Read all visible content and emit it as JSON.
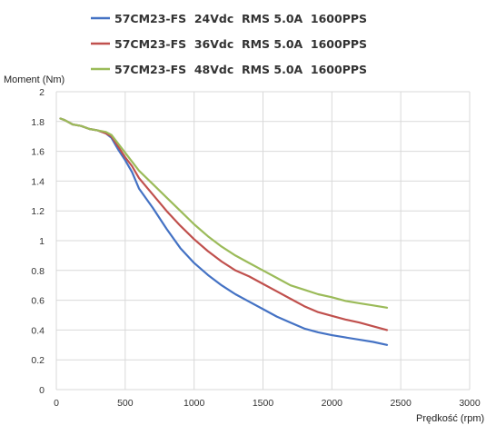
{
  "chart_data": {
    "type": "line",
    "title": "",
    "xlabel": "Prędkość (rpm)",
    "ylabel": "Moment (Nm)",
    "xlim": [
      0,
      3000
    ],
    "ylim": [
      0,
      2
    ],
    "xticks": [
      0,
      500,
      1000,
      1500,
      2000,
      2500,
      3000
    ],
    "yticks": [
      0,
      0.2,
      0.4,
      0.6,
      0.8,
      1,
      1.2,
      1.4,
      1.6,
      1.8,
      2
    ],
    "ytick_labels": [
      "0",
      "0.2",
      "0.4",
      "0.6",
      "0.8",
      "1",
      "1.2",
      "1.4",
      "1.6",
      "1.8",
      "2"
    ],
    "grid": true,
    "legend_position": "top",
    "series": [
      {
        "name": "57CM23-FS  24Vdc  RMS 5.0A  1600PPS",
        "color": "#4472c4",
        "x": [
          30,
          60,
          120,
          180,
          240,
          300,
          360,
          400,
          450,
          500,
          550,
          600,
          700,
          800,
          900,
          1000,
          1100,
          1200,
          1300,
          1400,
          1500,
          1600,
          1700,
          1800,
          1900,
          2000,
          2100,
          2200,
          2300,
          2400
        ],
        "y": [
          1.82,
          1.81,
          1.78,
          1.77,
          1.75,
          1.74,
          1.72,
          1.69,
          1.61,
          1.54,
          1.46,
          1.35,
          1.22,
          1.08,
          0.95,
          0.85,
          0.77,
          0.7,
          0.64,
          0.59,
          0.54,
          0.49,
          0.45,
          0.41,
          0.385,
          0.365,
          0.35,
          0.335,
          0.32,
          0.3
        ]
      },
      {
        "name": "57CM23-FS  36Vdc  RMS 5.0A  1600PPS",
        "color": "#c0504d",
        "x": [
          30,
          60,
          120,
          180,
          240,
          300,
          360,
          400,
          450,
          500,
          550,
          600,
          700,
          800,
          900,
          1000,
          1100,
          1200,
          1300,
          1400,
          1500,
          1600,
          1700,
          1800,
          1900,
          2000,
          2100,
          2200,
          2300,
          2400
        ],
        "y": [
          1.82,
          1.81,
          1.78,
          1.77,
          1.75,
          1.74,
          1.72,
          1.7,
          1.63,
          1.56,
          1.5,
          1.42,
          1.31,
          1.2,
          1.1,
          1.01,
          0.93,
          0.86,
          0.8,
          0.76,
          0.71,
          0.66,
          0.61,
          0.56,
          0.52,
          0.495,
          0.47,
          0.45,
          0.425,
          0.4
        ]
      },
      {
        "name": "57CM23-FS  48Vdc  RMS 5.0A  1600PPS",
        "color": "#9bbb59",
        "x": [
          30,
          60,
          120,
          180,
          240,
          300,
          360,
          400,
          450,
          500,
          550,
          600,
          700,
          800,
          900,
          1000,
          1100,
          1200,
          1300,
          1400,
          1500,
          1600,
          1700,
          1800,
          1900,
          2000,
          2100,
          2200,
          2300,
          2400
        ],
        "y": [
          1.82,
          1.81,
          1.78,
          1.77,
          1.75,
          1.74,
          1.73,
          1.71,
          1.65,
          1.59,
          1.53,
          1.47,
          1.38,
          1.29,
          1.2,
          1.11,
          1.03,
          0.96,
          0.9,
          0.85,
          0.8,
          0.75,
          0.7,
          0.67,
          0.64,
          0.62,
          0.595,
          0.58,
          0.565,
          0.55
        ]
      }
    ]
  }
}
